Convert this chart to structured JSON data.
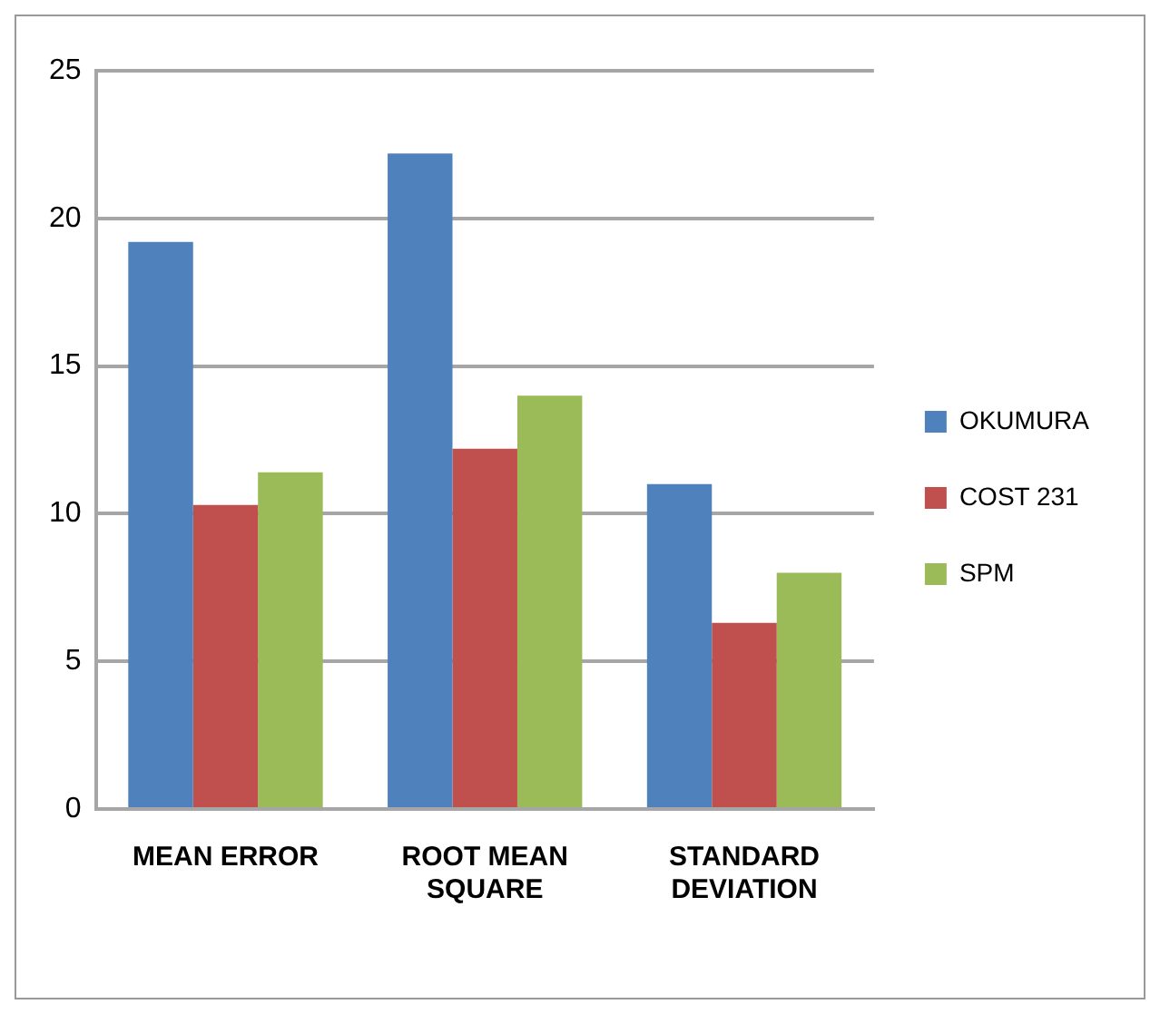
{
  "chart_data": {
    "type": "bar",
    "categories": [
      "MEAN ERROR",
      "ROOT MEAN SQUARE",
      "STANDARD DEVIATION"
    ],
    "series": [
      {
        "name": "OKUMURA",
        "color": "#4f81bd",
        "values": [
          19.2,
          22.2,
          11.0
        ]
      },
      {
        "name": "COST 231",
        "color": "#c0504d",
        "values": [
          10.3,
          12.2,
          6.3
        ]
      },
      {
        "name": "SPM",
        "color": "#9bbb59",
        "values": [
          11.4,
          14.0,
          8.0
        ]
      }
    ],
    "ylim": [
      0,
      25
    ],
    "yticks": [
      0,
      5,
      10,
      15,
      20,
      25
    ],
    "grid": "y",
    "legend": "right"
  }
}
